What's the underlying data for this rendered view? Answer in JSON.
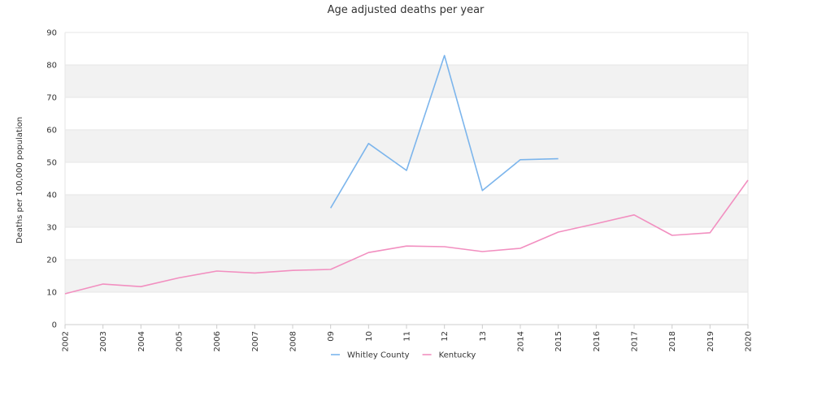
{
  "chart_data": {
    "type": "line",
    "title": "Age adjusted deaths per year",
    "ylabel": "Deaths per 100,000 population",
    "xlabel": "",
    "ylim": [
      0,
      90
    ],
    "y_ticks": [
      "0",
      "10",
      "20",
      "30",
      "40",
      "50",
      "60",
      "70",
      "80",
      "90"
    ],
    "categories": [
      "2002",
      "2003",
      "2004",
      "2005",
      "2006",
      "2007",
      "2008",
      "09",
      "10",
      "11",
      "12",
      "13",
      "2014",
      "2015",
      "2016",
      "2017",
      "2018",
      "2019",
      "2020"
    ],
    "grid": true,
    "banded_background": true,
    "legend_position": "bottom",
    "series": [
      {
        "name": "Whitley County",
        "color": "#7cb5ec",
        "values": [
          null,
          null,
          null,
          null,
          null,
          null,
          null,
          35.9,
          55.8,
          47.5,
          82.9,
          41.3,
          50.8,
          51.1,
          null,
          null,
          null,
          null,
          null
        ]
      },
      {
        "name": "Kentucky",
        "color": "#f28fc0",
        "values": [
          9.5,
          12.5,
          11.7,
          14.4,
          16.5,
          15.9,
          16.7,
          17.0,
          22.2,
          24.2,
          24.0,
          22.5,
          23.5,
          28.5,
          31.1,
          33.8,
          27.5,
          28.3,
          44.5
        ]
      }
    ]
  }
}
